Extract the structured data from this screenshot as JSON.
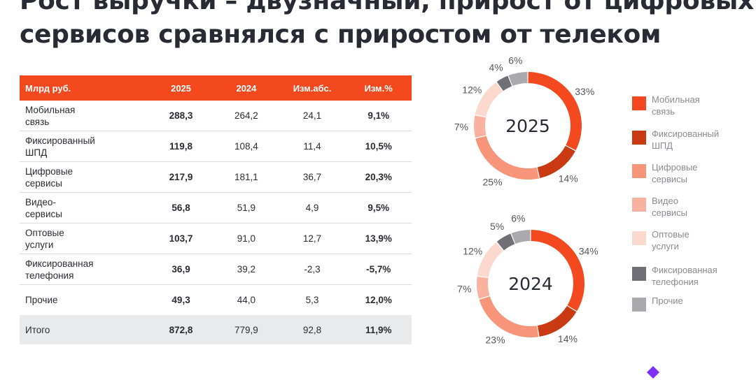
{
  "title": {
    "line1": "Рост выручки – двузначный, прирост от цифровых",
    "line2": "сервисов сравнялся с приростом от телеком"
  },
  "table": {
    "headers": [
      "Млрд руб.",
      "2025",
      "2024",
      "Изм.абс.",
      "Изм.%"
    ],
    "rows": [
      {
        "label1": "Мобильная",
        "label2": "связь",
        "v2025": "288,3",
        "v2024": "264,2",
        "abs": "24,1",
        "pct": "9,1%"
      },
      {
        "label1": "Фиксированный",
        "label2": "ШПД",
        "v2025": "119,8",
        "v2024": "108,4",
        "abs": "11,4",
        "pct": "10,5%"
      },
      {
        "label1": "Цифровые",
        "label2": "сервисы",
        "v2025": "217,9",
        "v2024": "181,1",
        "abs": "36,7",
        "pct": "20,3%"
      },
      {
        "label1": "Видео-",
        "label2": "сервисы",
        "v2025": "56,8",
        "v2024": "51,9",
        "abs": "4,9",
        "pct": "9,5%"
      },
      {
        "label1": "Оптовые",
        "label2": "услуги",
        "v2025": "103,7",
        "v2024": "91,0",
        "abs": "12,7",
        "pct": "13,9%"
      },
      {
        "label1": "Фиксированная",
        "label2": "телефония",
        "v2025": "36,9",
        "v2024": "39,2",
        "abs": "-2,3",
        "pct": "-5,7%"
      },
      {
        "label1": "Прочие",
        "label2": "",
        "v2025": "49,3",
        "v2024": "44,0",
        "abs": "5,3",
        "pct": "12,0%"
      }
    ],
    "total": {
      "label1": "Итого",
      "label2": "",
      "v2025": "872,8",
      "v2024": "779,9",
      "abs": "92,8",
      "pct": "11,9%"
    }
  },
  "colors": {
    "header": "#f4481f",
    "segments": [
      "#f4481f",
      "#c93a12",
      "#f6957a",
      "#f8b29f",
      "#fbd9ce",
      "#6f6f75",
      "#a9a9ae"
    ]
  },
  "chart_data": [
    {
      "type": "pie",
      "center_label": "2025",
      "categories": [
        "Мобильная связь",
        "Фиксированный ШПД",
        "Цифровые сервисы",
        "Видео сервисы",
        "Оптовые услуги",
        "Фиксированная телефония",
        "Прочие"
      ],
      "values": [
        33,
        14,
        25,
        7,
        12,
        4,
        6
      ],
      "labels": [
        "33%",
        "14%",
        "25%",
        "7%",
        "12%",
        "4%",
        "6%"
      ]
    },
    {
      "type": "pie",
      "center_label": "2024",
      "categories": [
        "Мобильная связь",
        "Фиксированный ШПД",
        "Цифровые сервисы",
        "Видео сервисы",
        "Оптовые услуги",
        "Фиксированная телефония",
        "Прочие"
      ],
      "values": [
        34,
        14,
        23,
        7,
        12,
        5,
        6
      ],
      "labels": [
        "34%",
        "14%",
        "23%",
        "7%",
        "12%",
        "5%",
        "6%"
      ]
    }
  ],
  "legend": [
    {
      "line1": "Мобильная",
      "line2": "связь"
    },
    {
      "line1": "Фиксированный",
      "line2": "ШПД"
    },
    {
      "line1": "Цифровые",
      "line2": "сервисы"
    },
    {
      "line1": "Видео",
      "line2": "сервисы"
    },
    {
      "line1": "Оптовые",
      "line2": "услуги"
    },
    {
      "line1": "Фиксированная",
      "line2": "телефония"
    },
    {
      "line1": "Прочие",
      "line2": ""
    }
  ]
}
